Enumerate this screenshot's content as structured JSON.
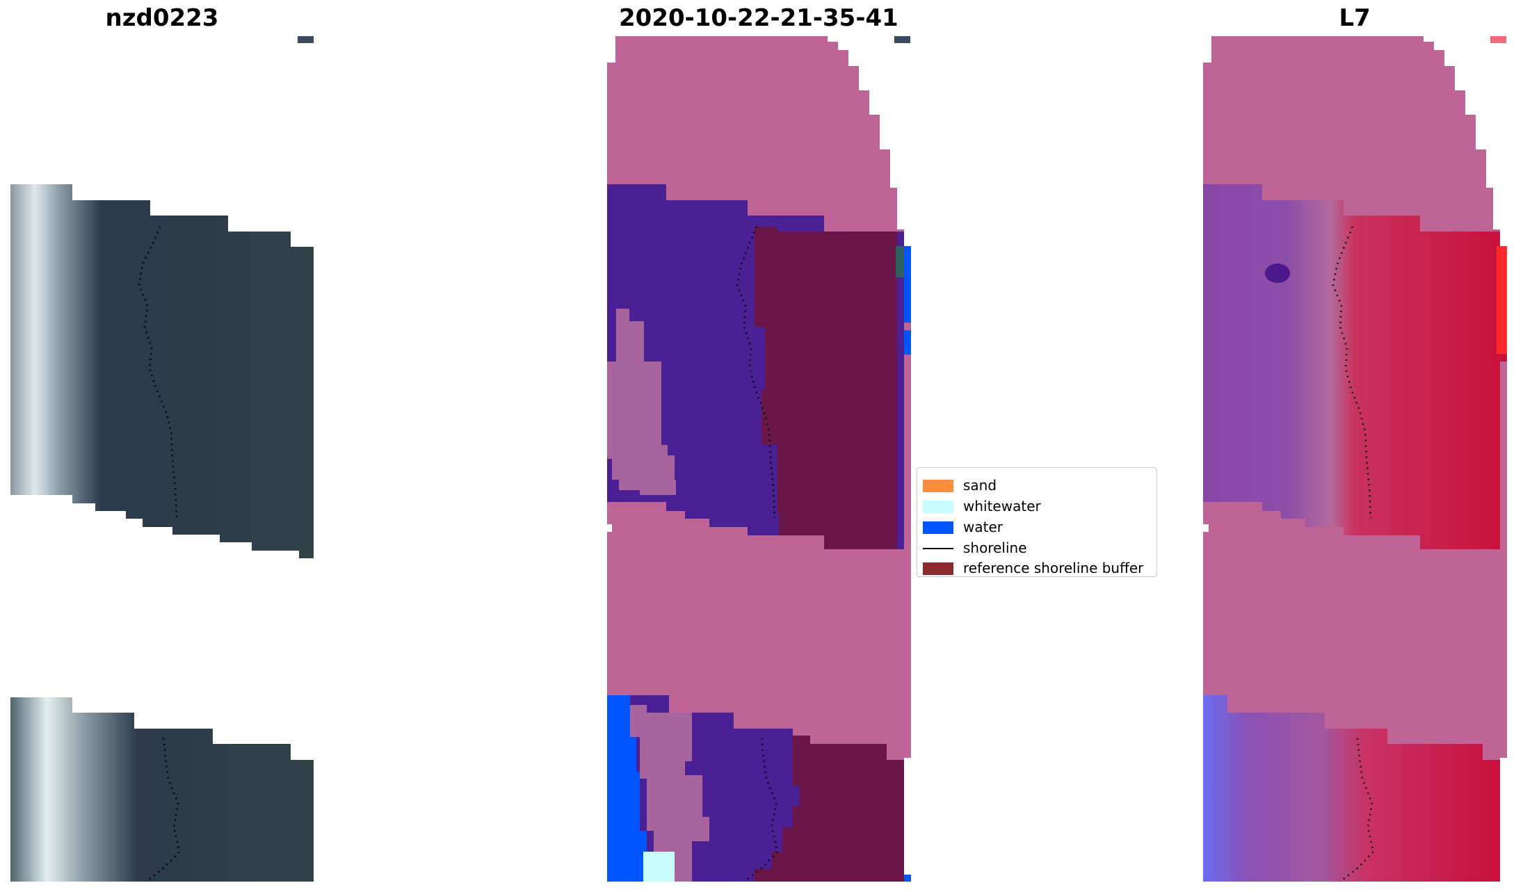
{
  "panels": {
    "left_title": "nzd0223",
    "center_title": "2020-10-22-21-35-41",
    "right_title": "L7"
  },
  "legend": {
    "items": [
      {
        "label": "sand",
        "type": "patch",
        "color": "#ff8c3a"
      },
      {
        "label": "whitewater",
        "type": "patch",
        "color": "#c8fcfc"
      },
      {
        "label": "water",
        "type": "patch",
        "color": "#0055ff"
      },
      {
        "label": "shoreline",
        "type": "line",
        "color": "#000000"
      },
      {
        "label": "reference shoreline buffer",
        "type": "patch",
        "color": "#8c2a2e"
      }
    ]
  },
  "colors": {
    "buffer_pink": "#be6496",
    "class_purple": "#4a2094",
    "buffer_maroon": "#6a1548",
    "water_blue": "#0055ff",
    "whitewater": "#c8fcfc",
    "pale_mauve": "#a8649c",
    "rgb_dark": "#2e3b4c",
    "index_red": "#c8103a"
  }
}
